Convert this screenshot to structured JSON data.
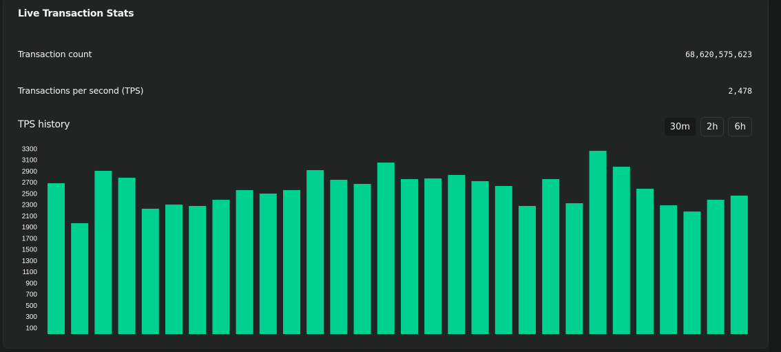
{
  "header": {
    "title": "Live Transaction Stats"
  },
  "stats": [
    {
      "label": "Transaction count",
      "value": "68,620,575,623"
    },
    {
      "label": "Transactions per second (TPS)",
      "value": "2,478"
    }
  ],
  "history": {
    "title": "TPS history",
    "ranges": [
      "30m",
      "2h",
      "6h"
    ],
    "active_range": "30m"
  },
  "colors": {
    "bar": "#00d18f",
    "background": "#202423"
  },
  "chart_data": {
    "type": "bar",
    "title": "TPS history",
    "xlabel": "",
    "ylabel": "",
    "ylim": [
      0,
      3400
    ],
    "y_ticks": [
      100,
      300,
      500,
      700,
      900,
      1100,
      1300,
      1500,
      1700,
      1900,
      2100,
      2300,
      2500,
      2700,
      2900,
      3100,
      3300
    ],
    "grid": false,
    "values": [
      2683,
      1969,
      2905,
      2782,
      2228,
      2302,
      2277,
      2388,
      2560,
      2498,
      2560,
      2917,
      2745,
      2671,
      3052,
      2757,
      2769,
      2831,
      2720,
      2634,
      2277,
      2757,
      2326,
      3262,
      2978,
      2585,
      2289,
      2178,
      2388,
      2462
    ]
  }
}
